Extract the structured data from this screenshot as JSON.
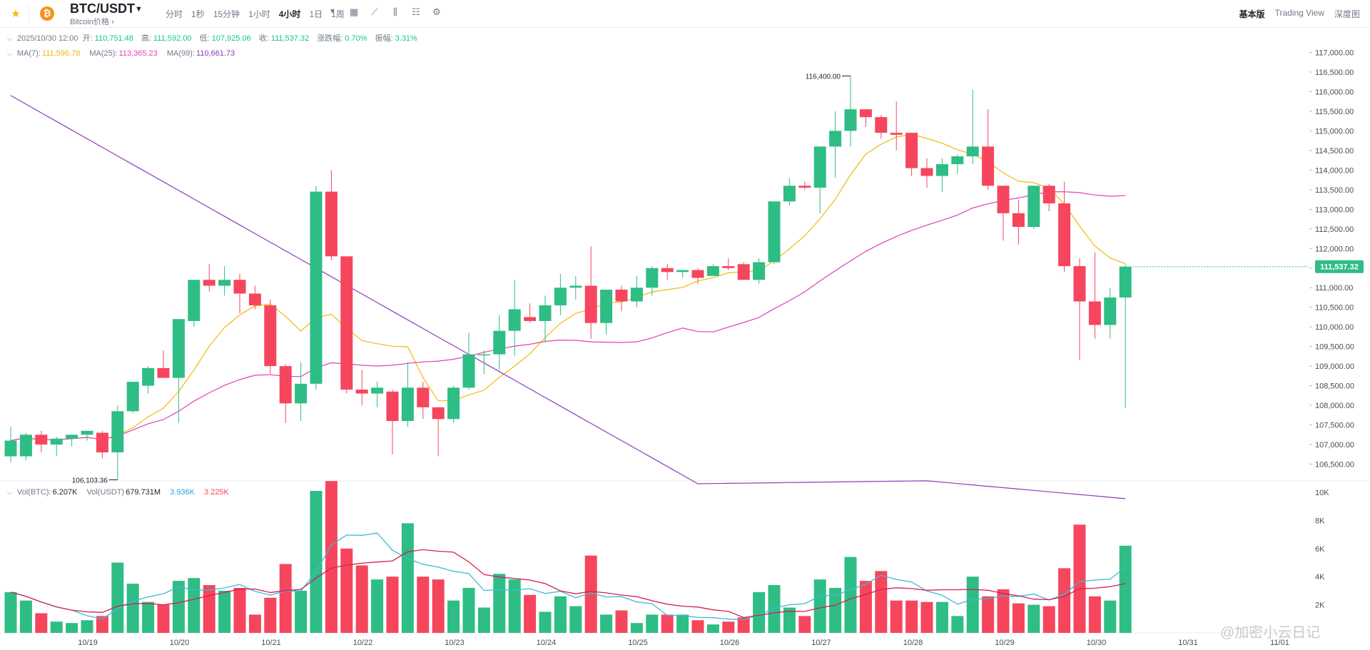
{
  "header": {
    "pair": "BTC/USDT",
    "pair_subtitle": "Bitcoin价格 ›",
    "intervals": [
      "分时",
      "1秒",
      "15分钟",
      "1小时",
      "4小时",
      "1日",
      "1周"
    ],
    "active_interval": "4小时",
    "views": [
      "基本版",
      "Trading View",
      "深度图"
    ],
    "active_view": "基本版"
  },
  "ohlc": {
    "datetime": "2025/10/30 12:00",
    "open_label": "开:",
    "open": "110,751.48",
    "high_label": "高:",
    "high": "111,592.00",
    "low_label": "低:",
    "low": "107,925.06",
    "close_label": "收:",
    "close": "111,537.32",
    "change_label": "涨跌幅:",
    "change": "0.70%",
    "amplitude_label": "振幅:",
    "amplitude": "3.31%"
  },
  "ma": {
    "ma7_label": "MA(7):",
    "ma7": "111,596.78",
    "ma25_label": "MA(25):",
    "ma25": "113,365.23",
    "ma99_label": "MA(99):",
    "ma99": "110,661.73"
  },
  "volume": {
    "vol_btc_label": "Vol(BTC):",
    "vol_btc": "6.207K",
    "vol_usdt_label": "Vol(USDT)",
    "vol_usdt": "679.731M",
    "ma5": "3.936K",
    "ma10": "3.225K"
  },
  "current_price": "111,537.32",
  "watermark": "@加密小云日记",
  "colors": {
    "up": "#2ebd85",
    "down": "#f6465d",
    "ma7": "#f0b90b",
    "ma25": "#e040b4",
    "ma99": "#8c3db8",
    "vma5": "#3cbcd4",
    "vma10": "#d61e55"
  },
  "chart_data": {
    "type": "candlestick",
    "title": "BTC/USDT 4小时",
    "price_axis": [
      "117,000.00",
      "116,500.00",
      "116,000.00",
      "115,500.00",
      "115,000.00",
      "114,500.00",
      "114,000.00",
      "113,500.00",
      "113,000.00",
      "112,500.00",
      "112,000.00",
      "111,500.00",
      "111,000.00",
      "110,500.00",
      "110,000.00",
      "109,500.00",
      "109,000.00",
      "108,500.00",
      "108,000.00",
      "107,500.00",
      "107,000.00",
      "106,500.00"
    ],
    "price_range": [
      106200,
      117300
    ],
    "volume_axis": [
      "10K",
      "8K",
      "6K",
      "4K",
      "2K"
    ],
    "volume_range": [
      0,
      10000
    ],
    "date_axis": [
      "10/19",
      "10/20",
      "10/21",
      "10/22",
      "10/23",
      "10/24",
      "10/25",
      "10/26",
      "10/27",
      "10/28",
      "10/29",
      "10/30",
      "10/31",
      "11/01"
    ],
    "high_annotation": "116,400.00",
    "low_annotation": "106,103.36",
    "candles": [
      {
        "o": 106700,
        "h": 107450,
        "l": 106550,
        "c": 107100,
        "v": 2900
      },
      {
        "o": 106700,
        "h": 107300,
        "l": 106600,
        "c": 107250,
        "v": 2300
      },
      {
        "o": 107250,
        "h": 107350,
        "l": 106800,
        "c": 107000,
        "v": 1400
      },
      {
        "o": 107000,
        "h": 107200,
        "l": 106700,
        "c": 107150,
        "v": 800
      },
      {
        "o": 107150,
        "h": 107250,
        "l": 106950,
        "c": 107250,
        "v": 700
      },
      {
        "o": 107250,
        "h": 107350,
        "l": 107100,
        "c": 107350,
        "v": 900
      },
      {
        "o": 107300,
        "h": 107350,
        "l": 106650,
        "c": 106800,
        "v": 1200
      },
      {
        "o": 106800,
        "h": 108000,
        "l": 106100,
        "c": 107850,
        "v": 5000
      },
      {
        "o": 107850,
        "h": 108600,
        "l": 107800,
        "c": 108600,
        "v": 3500
      },
      {
        "o": 108500,
        "h": 109000,
        "l": 108300,
        "c": 108950,
        "v": 2200
      },
      {
        "o": 108950,
        "h": 109400,
        "l": 108700,
        "c": 108700,
        "v": 2000
      },
      {
        "o": 108700,
        "h": 110150,
        "l": 107550,
        "c": 110200,
        "v": 3700
      },
      {
        "o": 110150,
        "h": 111200,
        "l": 110000,
        "c": 111200,
        "v": 3900
      },
      {
        "o": 111200,
        "h": 111600,
        "l": 110900,
        "c": 111050,
        "v": 3400
      },
      {
        "o": 111050,
        "h": 111550,
        "l": 110800,
        "c": 111200,
        "v": 3000
      },
      {
        "o": 111200,
        "h": 111350,
        "l": 110350,
        "c": 110850,
        "v": 3200
      },
      {
        "o": 110850,
        "h": 111050,
        "l": 110450,
        "c": 110550,
        "v": 1300
      },
      {
        "o": 110550,
        "h": 110700,
        "l": 108800,
        "c": 109000,
        "v": 2500
      },
      {
        "o": 109000,
        "h": 109050,
        "l": 107550,
        "c": 108050,
        "v": 4900
      },
      {
        "o": 108050,
        "h": 109100,
        "l": 107600,
        "c": 108550,
        "v": 3000
      },
      {
        "o": 108550,
        "h": 113600,
        "l": 108400,
        "c": 113450,
        "v": 10100
      },
      {
        "o": 113450,
        "h": 114000,
        "l": 111700,
        "c": 111800,
        "v": 10800
      },
      {
        "o": 111800,
        "h": 111800,
        "l": 108300,
        "c": 108400,
        "v": 6000
      },
      {
        "o": 108400,
        "h": 108900,
        "l": 108000,
        "c": 108300,
        "v": 4800
      },
      {
        "o": 108300,
        "h": 108600,
        "l": 107950,
        "c": 108450,
        "v": 3800
      },
      {
        "o": 108350,
        "h": 108400,
        "l": 106750,
        "c": 107600,
        "v": 4000
      },
      {
        "o": 107600,
        "h": 109100,
        "l": 107450,
        "c": 108450,
        "v": 7800
      },
      {
        "o": 108450,
        "h": 108600,
        "l": 107650,
        "c": 107950,
        "v": 4000
      },
      {
        "o": 107950,
        "h": 107950,
        "l": 106700,
        "c": 107650,
        "v": 3800
      },
      {
        "o": 107650,
        "h": 108500,
        "l": 107550,
        "c": 108450,
        "v": 2300
      },
      {
        "o": 108450,
        "h": 109850,
        "l": 108400,
        "c": 109300,
        "v": 3200
      },
      {
        "o": 109300,
        "h": 109400,
        "l": 108800,
        "c": 109300,
        "v": 1800
      },
      {
        "o": 109300,
        "h": 110300,
        "l": 108900,
        "c": 109900,
        "v": 4200
      },
      {
        "o": 109900,
        "h": 111200,
        "l": 109250,
        "c": 110450,
        "v": 3800
      },
      {
        "o": 110250,
        "h": 110600,
        "l": 110100,
        "c": 110150,
        "v": 2700
      },
      {
        "o": 110150,
        "h": 110800,
        "l": 109600,
        "c": 110550,
        "v": 1500
      },
      {
        "o": 110550,
        "h": 111350,
        "l": 110300,
        "c": 111000,
        "v": 2600
      },
      {
        "o": 111000,
        "h": 111300,
        "l": 110700,
        "c": 111050,
        "v": 1900
      },
      {
        "o": 111050,
        "h": 112050,
        "l": 109700,
        "c": 110100,
        "v": 5500
      },
      {
        "o": 110100,
        "h": 110950,
        "l": 109800,
        "c": 110950,
        "v": 1300
      },
      {
        "o": 110950,
        "h": 111050,
        "l": 110400,
        "c": 110650,
        "v": 1600
      },
      {
        "o": 110650,
        "h": 111300,
        "l": 110500,
        "c": 111000,
        "v": 700
      },
      {
        "o": 111000,
        "h": 111550,
        "l": 110800,
        "c": 111500,
        "v": 1300
      },
      {
        "o": 111500,
        "h": 111600,
        "l": 111200,
        "c": 111400,
        "v": 1300
      },
      {
        "o": 111400,
        "h": 111450,
        "l": 111250,
        "c": 111450,
        "v": 1300
      },
      {
        "o": 111450,
        "h": 111500,
        "l": 111100,
        "c": 111250,
        "v": 900
      },
      {
        "o": 111300,
        "h": 111600,
        "l": 111350,
        "c": 111550,
        "v": 600
      },
      {
        "o": 111550,
        "h": 111750,
        "l": 111450,
        "c": 111500,
        "v": 800
      },
      {
        "o": 111600,
        "h": 111650,
        "l": 111200,
        "c": 111200,
        "v": 1100
      },
      {
        "o": 111200,
        "h": 111750,
        "l": 111100,
        "c": 111650,
        "v": 2900
      },
      {
        "o": 111650,
        "h": 113200,
        "l": 111600,
        "c": 113200,
        "v": 3400
      },
      {
        "o": 113200,
        "h": 113800,
        "l": 113100,
        "c": 113600,
        "v": 1800
      },
      {
        "o": 113600,
        "h": 113700,
        "l": 113500,
        "c": 113550,
        "v": 1200
      },
      {
        "o": 113550,
        "h": 114600,
        "l": 112900,
        "c": 114600,
        "v": 3800
      },
      {
        "o": 114600,
        "h": 115500,
        "l": 113800,
        "c": 115000,
        "v": 3200
      },
      {
        "o": 115000,
        "h": 116400,
        "l": 114600,
        "c": 115550,
        "v": 5400
      },
      {
        "o": 115550,
        "h": 115500,
        "l": 115100,
        "c": 115350,
        "v": 3700
      },
      {
        "o": 115350,
        "h": 115400,
        "l": 114800,
        "c": 114950,
        "v": 4400
      },
      {
        "o": 114950,
        "h": 115750,
        "l": 114500,
        "c": 114900,
        "v": 2300
      },
      {
        "o": 114950,
        "h": 114950,
        "l": 113850,
        "c": 114050,
        "v": 2300
      },
      {
        "o": 114050,
        "h": 114300,
        "l": 113550,
        "c": 113850,
        "v": 2200
      },
      {
        "o": 113850,
        "h": 114300,
        "l": 113450,
        "c": 114150,
        "v": 2200
      },
      {
        "o": 114150,
        "h": 114400,
        "l": 113900,
        "c": 114350,
        "v": 1200
      },
      {
        "o": 114350,
        "h": 116050,
        "l": 114150,
        "c": 114600,
        "v": 4000
      },
      {
        "o": 114600,
        "h": 115550,
        "l": 113500,
        "c": 113600,
        "v": 2600
      },
      {
        "o": 113600,
        "h": 113600,
        "l": 112200,
        "c": 112900,
        "v": 3100
      },
      {
        "o": 112900,
        "h": 113250,
        "l": 112100,
        "c": 112550,
        "v": 2100
      },
      {
        "o": 112550,
        "h": 113600,
        "l": 112500,
        "c": 113600,
        "v": 2000
      },
      {
        "o": 113600,
        "h": 113650,
        "l": 112950,
        "c": 113150,
        "v": 1900
      },
      {
        "o": 113150,
        "h": 113700,
        "l": 111400,
        "c": 111550,
        "v": 4600
      },
      {
        "o": 111550,
        "h": 111750,
        "l": 109150,
        "c": 110650,
        "v": 7700
      },
      {
        "o": 110650,
        "h": 111900,
        "l": 109700,
        "c": 110050,
        "v": 2600
      },
      {
        "o": 110050,
        "h": 111000,
        "l": 109700,
        "c": 110750,
        "v": 2300
      },
      {
        "o": 110750,
        "h": 111590,
        "l": 107925,
        "c": 111537,
        "v": 6200
      }
    ]
  }
}
